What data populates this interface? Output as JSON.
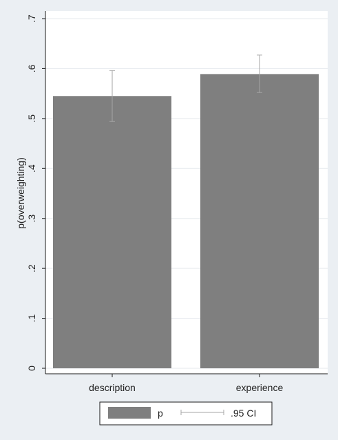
{
  "chart_data": {
    "type": "bar",
    "categories": [
      "description",
      "experience"
    ],
    "series": [
      {
        "name": "p",
        "values": [
          0.545,
          0.589
        ],
        "ci_low": [
          0.494,
          0.552
        ],
        "ci_high": [
          0.596,
          0.627
        ]
      }
    ],
    "ylabel": "p(overweighting)",
    "xlabel": "",
    "ylim": [
      0,
      0.7
    ],
    "yticks": [
      0,
      0.1,
      0.2,
      0.3,
      0.4,
      0.5,
      0.6,
      0.7
    ],
    "ytick_labels": [
      "0",
      ".1",
      ".2",
      ".3",
      ".4",
      ".5",
      ".6",
      ".7"
    ],
    "grid": true,
    "legend": {
      "placement": "bottom",
      "entries": [
        {
          "label": "p",
          "kind": "bar"
        },
        {
          "label": ".95 CI",
          "kind": "errorbar"
        }
      ]
    },
    "colors": {
      "bar": "#7f7f7f",
      "errorbar": "#a6a6a6",
      "plot_bg": "#ffffff",
      "page_bg": "#ebeff3",
      "grid": "#e6eaee"
    }
  }
}
